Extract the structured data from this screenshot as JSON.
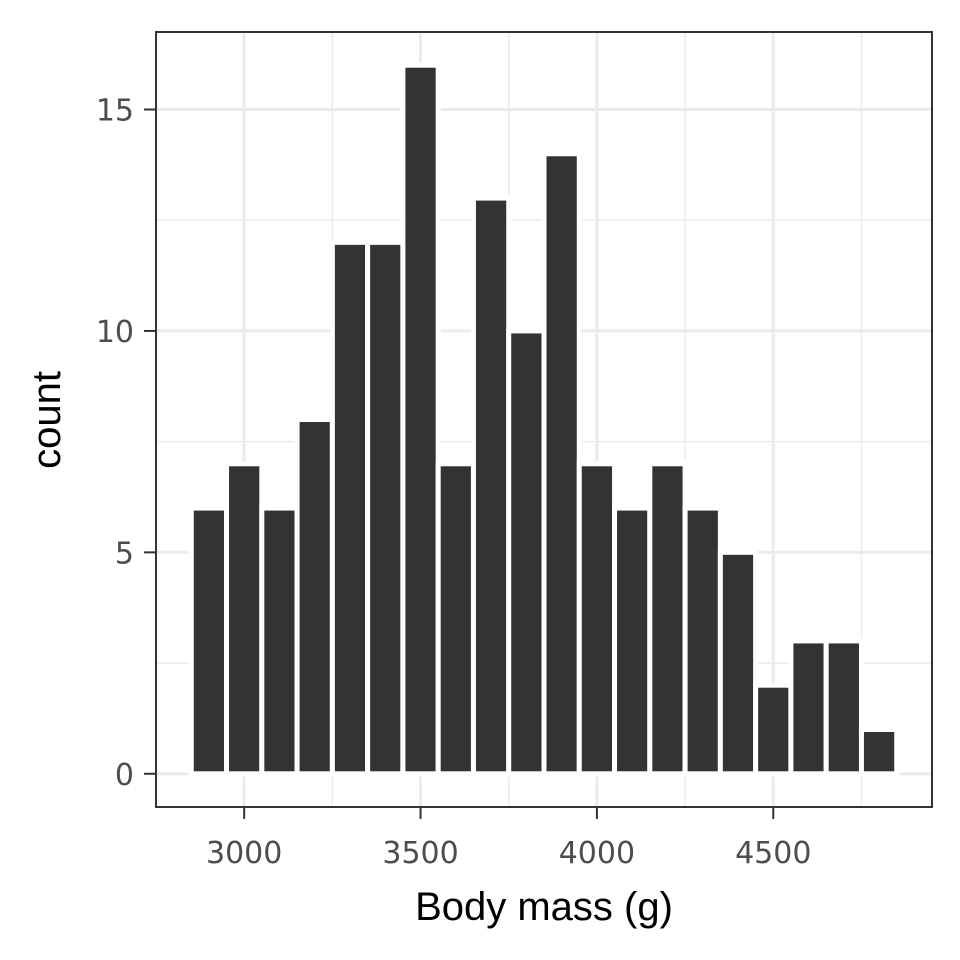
{
  "chart_data": {
    "type": "bar",
    "subtype": "histogram",
    "xlabel": "Body mass (g)",
    "ylabel": "count",
    "xlim": [
      2750,
      4950
    ],
    "ylim": [
      -0.75,
      16.75
    ],
    "x_ticks": [
      3000,
      3500,
      4000,
      4500
    ],
    "y_ticks": [
      0,
      5,
      10,
      15
    ],
    "bin_width": 100,
    "bin_centers": [
      2900,
      3000,
      3100,
      3200,
      3300,
      3400,
      3500,
      3600,
      3700,
      3800,
      3900,
      4000,
      4100,
      4200,
      4300,
      4400,
      4500,
      4600,
      4700,
      4800
    ],
    "values": [
      6,
      7,
      6,
      8,
      12,
      12,
      16,
      7,
      13,
      10,
      14,
      7,
      6,
      7,
      6,
      5,
      2,
      3,
      3,
      1
    ],
    "grid": true,
    "bar_color": "#333333",
    "panel_border_color": "#333333",
    "grid_color": "#ebebeb"
  }
}
